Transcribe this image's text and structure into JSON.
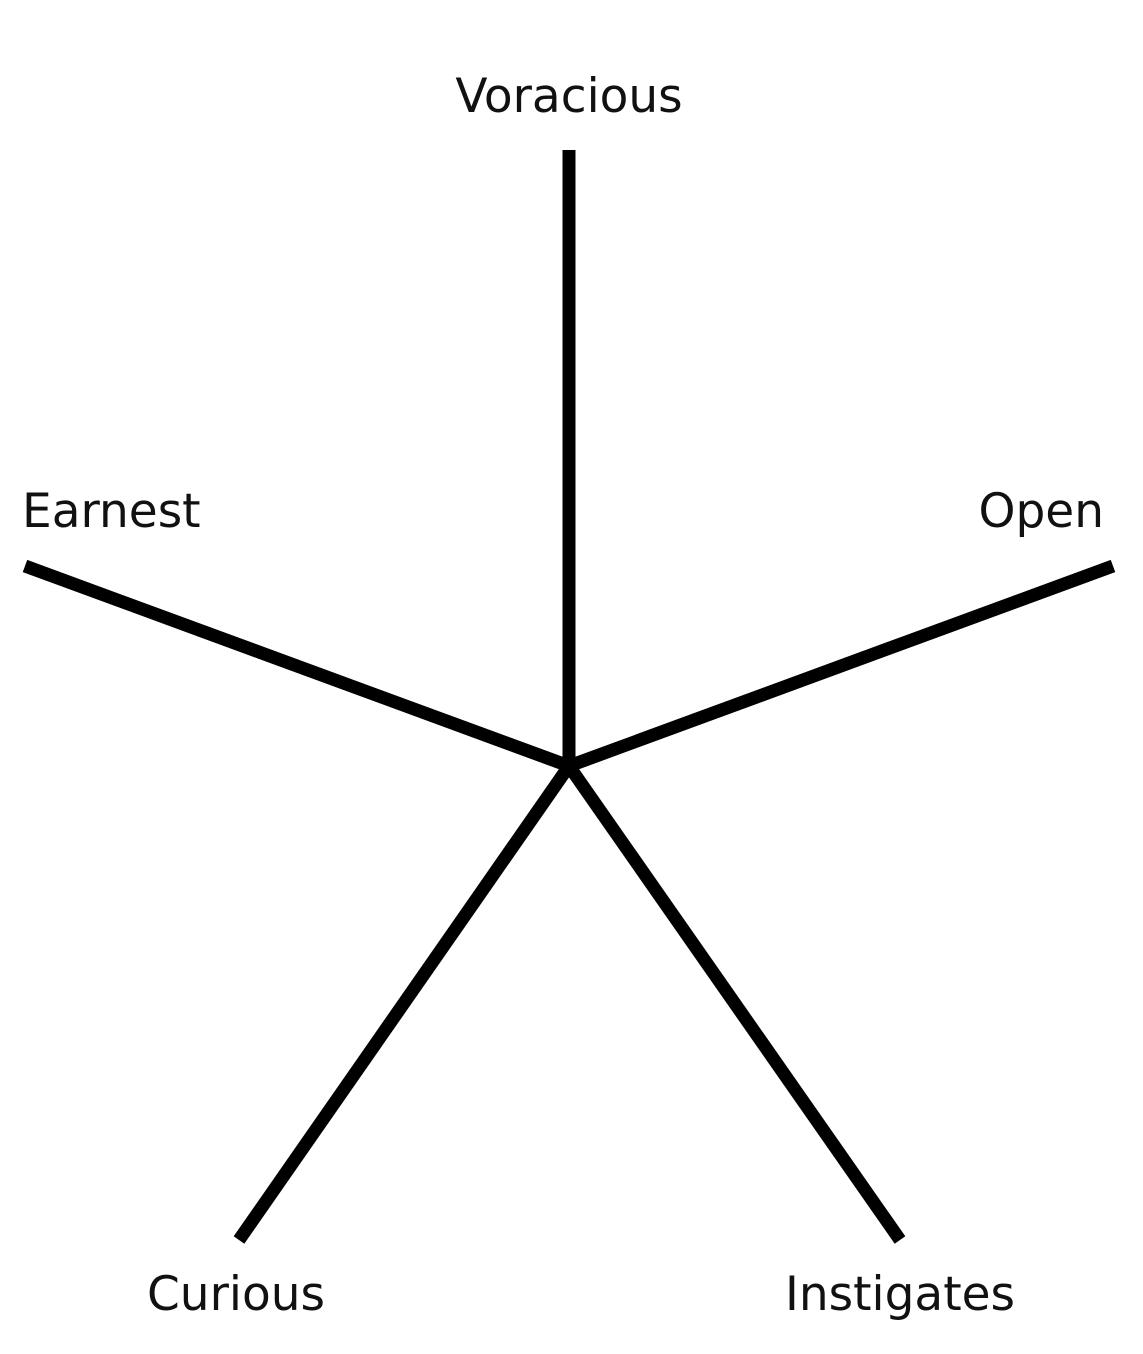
{
  "diagram": {
    "line_color": "#000000",
    "text_color": "#111111",
    "background": "#ffffff",
    "labels": {
      "top": "Voracious",
      "upper_right": "Open",
      "upper_left": "Earnest",
      "lower_left": "Curious",
      "lower_right": "Instigates"
    }
  }
}
